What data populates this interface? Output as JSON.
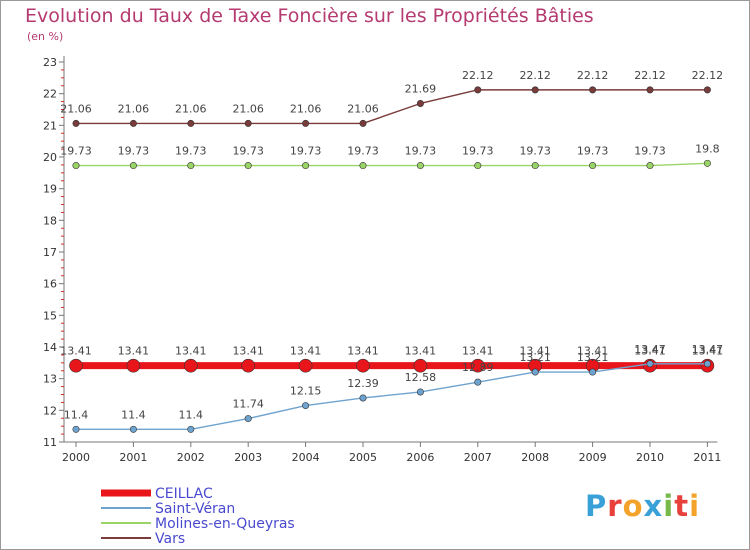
{
  "chart_data": {
    "type": "line",
    "title": "Evolution du Taux de Taxe Foncière sur les Propriétés Bâties",
    "ylabel": "(en %)",
    "xlabel": "",
    "ylim": [
      11,
      23
    ],
    "y_ticks": [
      11,
      12,
      13,
      14,
      15,
      16,
      17,
      18,
      19,
      20,
      21,
      22,
      23
    ],
    "categories": [
      "2000",
      "2001",
      "2002",
      "2003",
      "2004",
      "2005",
      "2006",
      "2007",
      "2008",
      "2009",
      "2010",
      "2011"
    ],
    "series": [
      {
        "name": "CEILLAC",
        "color": "#e8161b",
        "values": [
          13.41,
          13.41,
          13.41,
          13.41,
          13.41,
          13.41,
          13.41,
          13.41,
          13.41,
          13.41,
          13.41,
          13.41
        ],
        "labels": [
          "13.41",
          "13.41",
          "13.41",
          "13.41",
          "13.41",
          "13.41",
          "13.41",
          "13.41",
          "13.41",
          "13.41",
          "13.41",
          "13.41"
        ]
      },
      {
        "name": "Saint-Véran",
        "color": "#6fa3cf",
        "values": [
          11.4,
          11.4,
          11.4,
          11.74,
          12.15,
          12.39,
          12.58,
          12.89,
          13.21,
          13.21,
          13.47,
          13.47
        ],
        "labels": [
          "11.4",
          "11.4",
          "11.4",
          "11.74",
          "12.15",
          "12.39",
          "12.58",
          "12.89",
          "13.21",
          "13.21",
          "13.47",
          "13.47"
        ]
      },
      {
        "name": "Molines-en-Queyras",
        "color": "#9ad467",
        "values": [
          19.73,
          19.73,
          19.73,
          19.73,
          19.73,
          19.73,
          19.73,
          19.73,
          19.73,
          19.73,
          19.73,
          19.8
        ],
        "labels": [
          "19.73",
          "19.73",
          "19.73",
          "19.73",
          "19.73",
          "19.73",
          "19.73",
          "19.73",
          "19.73",
          "19.73",
          "19.73",
          "19.8"
        ]
      },
      {
        "name": "Vars",
        "color": "#7a3b3b",
        "values": [
          21.06,
          21.06,
          21.06,
          21.06,
          21.06,
          21.06,
          21.69,
          22.12,
          22.12,
          22.12,
          22.12,
          22.12
        ],
        "labels": [
          "21.06",
          "21.06",
          "21.06",
          "21.06",
          "21.06",
          "21.06",
          "21.69",
          "22.12",
          "22.12",
          "22.12",
          "22.12",
          "22.12"
        ]
      }
    ],
    "legend_position": "bottom-left",
    "grid": false
  },
  "logo": {
    "letters": [
      "P",
      "r",
      "o",
      "x",
      "i",
      "t",
      "i"
    ],
    "colors": [
      "#3aa0d8",
      "#e8413c",
      "#f4a32a",
      "#3aa0d8",
      "#77b84a",
      "#e8413c",
      "#f4a32a"
    ]
  }
}
